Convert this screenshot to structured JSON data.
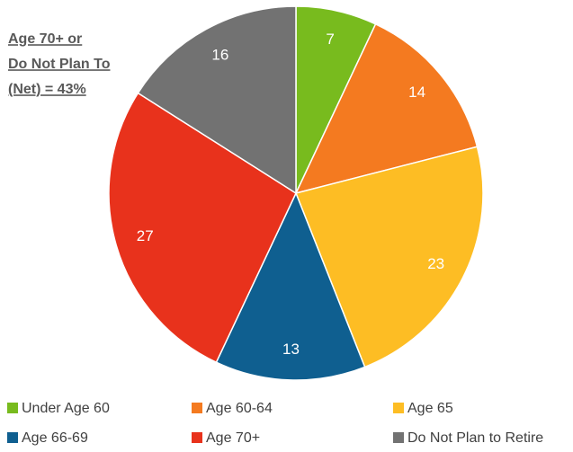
{
  "chart_data": {
    "type": "pie",
    "annotation": [
      "Age 70+ or",
      "Do Not Plan To",
      "(Net) = 43%"
    ],
    "categories": [
      "Under Age 60",
      "Age 60-64",
      "Age 65",
      "Age 66-69",
      "Age 70+",
      "Do Not Plan to Retire"
    ],
    "values": [
      7,
      14,
      23,
      13,
      27,
      16
    ],
    "colors": [
      "#78bb1e",
      "#f47a20",
      "#fdbd24",
      "#0f5f90",
      "#e8321c",
      "#727272"
    ],
    "legend": "bottom"
  }
}
